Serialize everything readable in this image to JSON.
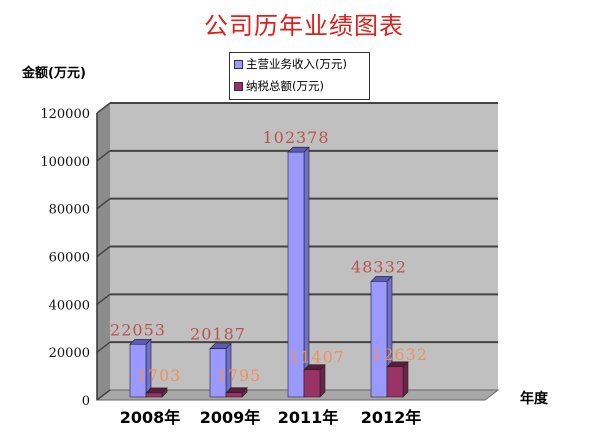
{
  "chart_data": {
    "type": "bar",
    "title": "公司历年业绩图表",
    "ylabel": "金额(万元)",
    "xlabel": "年度",
    "categories": [
      "2008年",
      "2009年",
      "2011年",
      "2012年"
    ],
    "series": [
      {
        "name": "主营业务收入(万元)",
        "values": [
          22053,
          20187,
          102378,
          48332
        ],
        "color": "#9999ff",
        "label_color": "#b9544c"
      },
      {
        "name": "纳税总额(万元)",
        "values": [
          1703,
          1795,
          11407,
          12632
        ],
        "color": "#993366",
        "label_color": "#f0905c"
      }
    ],
    "ylim": [
      0,
      120000
    ],
    "yticks": [
      "0",
      "20000",
      "40000",
      "60000",
      "80000",
      "100000",
      "120000"
    ],
    "grid": true,
    "legend": "top",
    "style": "3d-column",
    "wall_color": "#c0c0c0"
  }
}
